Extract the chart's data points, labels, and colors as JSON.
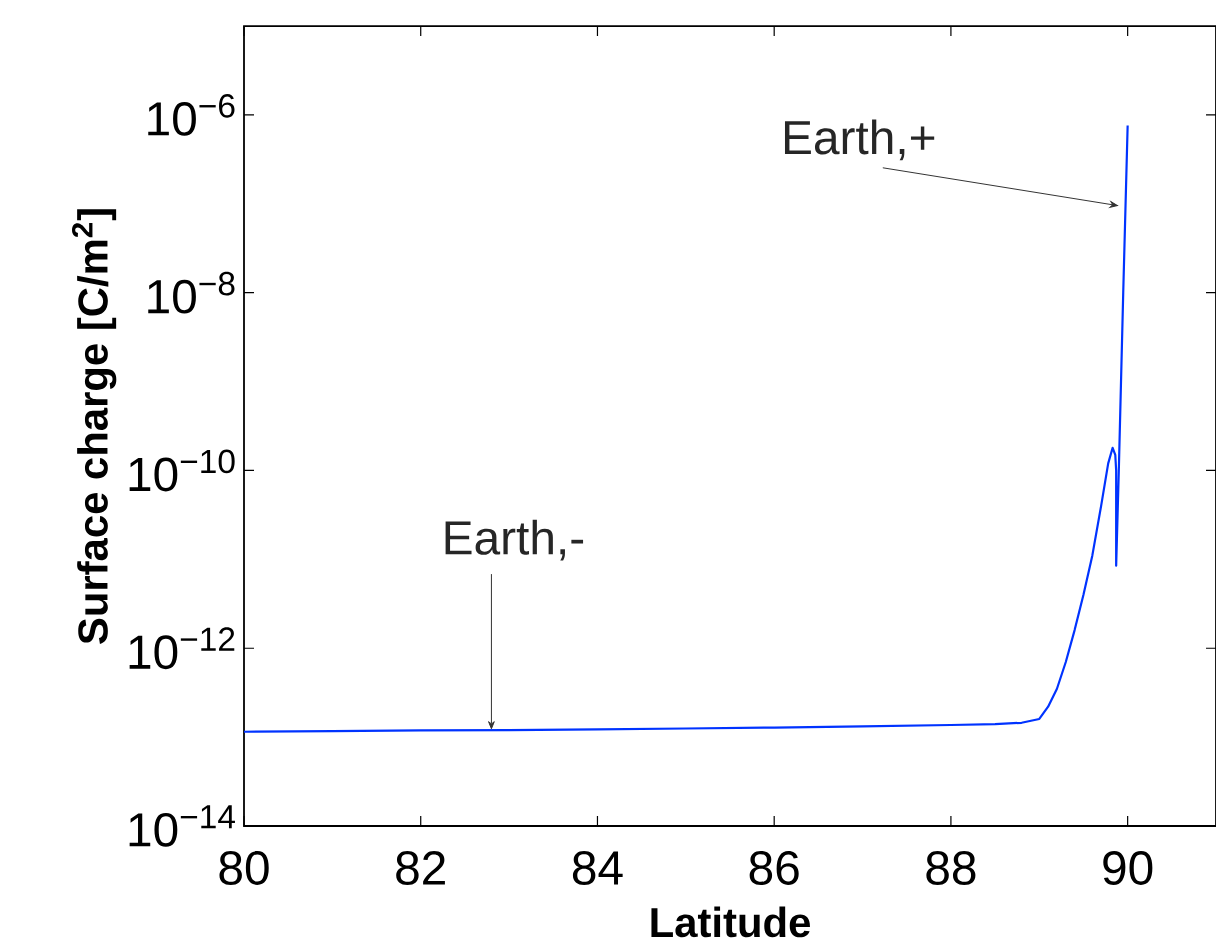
{
  "chart_data": {
    "type": "line",
    "xlabel": "Latitude",
    "ylabel": "Surface charge [C/m$^{2}$]",
    "xlim": [
      80,
      91
    ],
    "xticks": [
      80,
      82,
      84,
      86,
      88,
      90
    ],
    "ylim": [
      1e-14,
      1e-05
    ],
    "log": "y",
    "yticks": [
      {
        "value": 1e-14,
        "label": "10$^{−14}$"
      },
      {
        "value": 1e-12,
        "label": "10$^{−12}$"
      },
      {
        "value": 1e-10,
        "label": "10$^{−10}$"
      },
      {
        "value": 1e-08,
        "label": "10$^{−8}$"
      },
      {
        "value": 1e-06,
        "label": "10$^{−6}$"
      }
    ],
    "grid": false,
    "series": [
      {
        "color": "#0033ff",
        "x": [
          80,
          81,
          82,
          83,
          84,
          85,
          86,
          87,
          88,
          88.5,
          88.8,
          89.0,
          89.1,
          89.2,
          89.3,
          89.4,
          89.5,
          89.6,
          89.7,
          89.78,
          89.83,
          89.86,
          89.87,
          89.87,
          89.9,
          89.95,
          90.0
        ],
        "values": [
          1.15e-13,
          1.17e-13,
          1.19e-13,
          1.2e-13,
          1.22e-13,
          1.25e-13,
          1.28e-13,
          1.32e-13,
          1.37e-13,
          1.4e-13,
          1.45e-13,
          1.6e-13,
          2.2e-13,
          3.5e-13,
          7e-13,
          1.6e-12,
          4e-12,
          1.1e-11,
          4e-11,
          1.2e-10,
          1.8e-10,
          1.5e-10,
          1e-10,
          8.5e-12,
          1e-10,
          1e-08,
          7.6e-07
        ]
      }
    ],
    "annotations": [
      {
        "text": "Earth,-",
        "x": 82.8,
        "y": 1.2e-13
      },
      {
        "text": "Earth,+",
        "x": 89.9,
        "y": 9.5e-08
      }
    ]
  }
}
